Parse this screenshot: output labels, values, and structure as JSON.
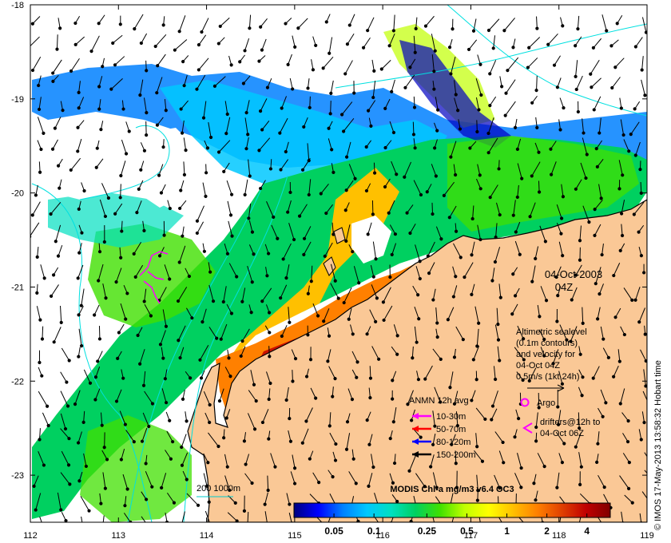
{
  "map": {
    "lon_ticks": [
      "112",
      "113",
      "114",
      "115",
      "116",
      "117",
      "118",
      "119"
    ],
    "lat_ticks": [
      "-18",
      "-19",
      "-20",
      "-21",
      "-22",
      "-23"
    ],
    "lon_range": [
      112,
      119
    ],
    "lat_range": [
      -23.5,
      -18
    ],
    "date": "04-Oct-2003",
    "hour": "04Z",
    "credit": "© IMOS 17-May-2013 13:58:32 Hobart time"
  },
  "altimetry_note": {
    "lines": [
      "Altimetric sealevel",
      "(0.1m contours)",
      "and velocity for",
      "04-Oct 04Z",
      "0.5m/s (1kt 24h)"
    ]
  },
  "anmn_legend": {
    "title": "ANMN 12h avg",
    "items": [
      {
        "label": "10-30m",
        "color": "#ff00ff"
      },
      {
        "label": "50-70m",
        "color": "#ff0000"
      },
      {
        "label": "80-120m",
        "color": "#0000ff"
      },
      {
        "label": "150-200m",
        "color": "#000000"
      }
    ]
  },
  "argo_legend": {
    "label": "Argo",
    "color": "#ff00ff"
  },
  "drifter_legend": {
    "line1": "drifters@12h to",
    "line2": "04-Oct 06Z",
    "color": "#ff00ff"
  },
  "bathy_legend": {
    "label": "200  1000m",
    "color": "#00cccc"
  },
  "colorbar": {
    "title": "MODIS Chl-a mg/m3 v6.4 OC3",
    "ticks": [
      "0.05",
      "0.1",
      "0.25",
      "0.5",
      "1",
      "2",
      "4"
    ],
    "colors": [
      "#00007f",
      "#0000ff",
      "#0080ff",
      "#00c8ff",
      "#00e0c0",
      "#00d060",
      "#40e000",
      "#c0ff00",
      "#ffff00",
      "#ffc000",
      "#ff8000",
      "#e04000",
      "#c00000",
      "#800000"
    ]
  },
  "colors": {
    "land": "#fac896",
    "coast_line": "#000000",
    "contour": "#00e0e0"
  }
}
